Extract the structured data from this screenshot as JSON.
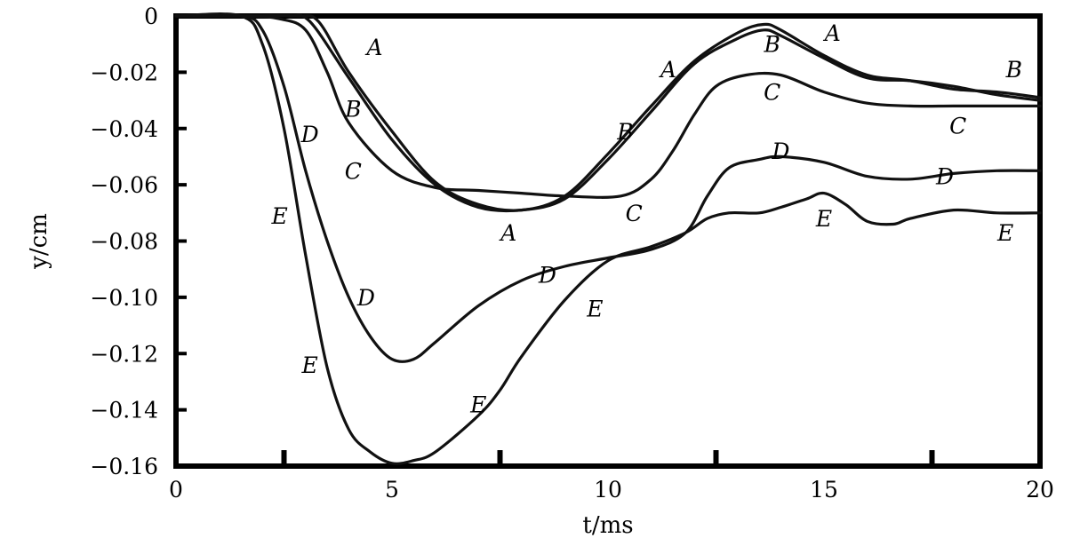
{
  "chart_data": {
    "type": "line",
    "xlabel": "t/ms",
    "ylabel": "y/cm",
    "xlim": [
      0,
      20
    ],
    "ylim": [
      -0.16,
      0
    ],
    "xticks": [
      0,
      5,
      10,
      15,
      20
    ],
    "xtick_labels": [
      "0",
      "5",
      "10",
      "15",
      "20"
    ],
    "xminor": [
      2.5,
      7.5,
      12.5,
      17.5
    ],
    "yticks": [
      0,
      -0.02,
      -0.04,
      -0.06,
      -0.08,
      -0.1,
      -0.12,
      -0.14,
      -0.16
    ],
    "ytick_labels": [
      "0",
      "−0.02",
      "−0.04",
      "−0.06",
      "−0.08",
      "−0.10",
      "−0.12",
      "−0.14",
      "−0.16"
    ],
    "series": [
      {
        "name": "A",
        "x": [
          0,
          1.8,
          2.8,
          3.3,
          4,
          5,
          6,
          7,
          8,
          9,
          10,
          11,
          12,
          13,
          13.6,
          14,
          15,
          16,
          17,
          18,
          19,
          20
        ],
        "y": [
          0,
          0,
          0,
          -0.002,
          -0.02,
          -0.041,
          -0.059,
          -0.067,
          -0.069,
          -0.064,
          -0.049,
          -0.032,
          -0.016,
          -0.006,
          -0.003,
          -0.005,
          -0.014,
          -0.021,
          -0.023,
          -0.026,
          -0.027,
          -0.029
        ]
      },
      {
        "name": "B",
        "x": [
          0,
          1.8,
          2.6,
          3.1,
          4,
          5,
          6,
          7,
          8,
          9,
          10,
          11,
          12,
          13,
          13.6,
          14,
          15,
          16,
          17,
          18,
          19,
          20
        ],
        "y": [
          0,
          0,
          0,
          -0.002,
          -0.022,
          -0.044,
          -0.06,
          -0.068,
          -0.069,
          -0.065,
          -0.051,
          -0.034,
          -0.017,
          -0.008,
          -0.005,
          -0.007,
          -0.015,
          -0.022,
          -0.023,
          -0.025,
          -0.028,
          -0.03
        ]
      },
      {
        "name": "C",
        "x": [
          0,
          1.6,
          2.4,
          3,
          3.5,
          4,
          5,
          6,
          7,
          8,
          9,
          10.3,
          11,
          11.5,
          12,
          12.5,
          13.2,
          14,
          15,
          16,
          17,
          18,
          19,
          20
        ],
        "y": [
          0,
          0,
          -0.001,
          -0.005,
          -0.02,
          -0.038,
          -0.055,
          -0.061,
          -0.062,
          -0.063,
          -0.064,
          -0.064,
          -0.058,
          -0.048,
          -0.035,
          -0.025,
          -0.021,
          -0.021,
          -0.027,
          -0.031,
          -0.032,
          -0.032,
          -0.032,
          -0.032
        ]
      },
      {
        "name": "D",
        "x": [
          0,
          1.5,
          2,
          2.5,
          3,
          3.5,
          4,
          4.5,
          5,
          5.5,
          6,
          7,
          8,
          9,
          10,
          11,
          11.8,
          12.3,
          12.8,
          13.5,
          14,
          15,
          16,
          17,
          18,
          19,
          20
        ],
        "y": [
          0,
          0,
          -0.005,
          -0.025,
          -0.055,
          -0.08,
          -0.1,
          -0.114,
          -0.122,
          -0.122,
          -0.116,
          -0.103,
          -0.094,
          -0.089,
          -0.086,
          -0.083,
          -0.077,
          -0.064,
          -0.054,
          -0.051,
          -0.05,
          -0.052,
          -0.057,
          -0.058,
          -0.056,
          -0.055,
          -0.055
        ]
      },
      {
        "name": "E",
        "x": [
          0,
          1.5,
          2,
          2.5,
          3,
          3.5,
          4,
          4.5,
          5,
          5.5,
          6,
          7,
          7.5,
          8,
          9,
          10,
          11,
          11.8,
          12.3,
          12.8,
          13.5,
          14,
          14.6,
          15,
          15.5,
          16,
          16.6,
          17,
          18,
          19,
          20
        ],
        "y": [
          0,
          0,
          -0.01,
          -0.04,
          -0.085,
          -0.125,
          -0.147,
          -0.155,
          -0.159,
          -0.158,
          -0.155,
          -0.142,
          -0.133,
          -0.121,
          -0.101,
          -0.087,
          -0.082,
          -0.077,
          -0.072,
          -0.07,
          -0.07,
          -0.068,
          -0.065,
          -0.063,
          -0.067,
          -0.073,
          -0.074,
          -0.072,
          -0.069,
          -0.07,
          -0.07
        ]
      }
    ],
    "annotations": [
      {
        "text": "A",
        "series": "A",
        "x": 4.6,
        "y": -0.011
      },
      {
        "text": "A",
        "series": "A",
        "x": 11.4,
        "y": -0.019
      },
      {
        "text": "A",
        "series": "A",
        "x": 15.2,
        "y": -0.006
      },
      {
        "text": "A",
        "series": "A",
        "x": 7.7,
        "y": -0.077
      },
      {
        "text": "B",
        "series": "B",
        "x": 4.1,
        "y": -0.033
      },
      {
        "text": "B",
        "series": "B",
        "x": 10.4,
        "y": -0.041
      },
      {
        "text": "B",
        "series": "B",
        "x": 13.8,
        "y": -0.01
      },
      {
        "text": "B",
        "series": "B",
        "x": 19.4,
        "y": -0.019
      },
      {
        "text": "C",
        "series": "C",
        "x": 4.1,
        "y": -0.055
      },
      {
        "text": "C",
        "series": "C",
        "x": 10.6,
        "y": -0.07
      },
      {
        "text": "C",
        "series": "C",
        "x": 13.8,
        "y": -0.027
      },
      {
        "text": "C",
        "series": "C",
        "x": 18.1,
        "y": -0.039
      },
      {
        "text": "D",
        "series": "D",
        "x": 3.1,
        "y": -0.042
      },
      {
        "text": "D",
        "series": "D",
        "x": 4.4,
        "y": -0.1
      },
      {
        "text": "D",
        "series": "D",
        "x": 8.6,
        "y": -0.092
      },
      {
        "text": "D",
        "series": "D",
        "x": 14.0,
        "y": -0.048
      },
      {
        "text": "D",
        "series": "D",
        "x": 17.8,
        "y": -0.057
      },
      {
        "text": "E",
        "series": "E",
        "x": 2.4,
        "y": -0.071
      },
      {
        "text": "E",
        "series": "E",
        "x": 3.1,
        "y": -0.124
      },
      {
        "text": "E",
        "series": "E",
        "x": 7.0,
        "y": -0.138
      },
      {
        "text": "E",
        "series": "E",
        "x": 9.7,
        "y": -0.104
      },
      {
        "text": "E",
        "series": "E",
        "x": 15.0,
        "y": -0.072
      },
      {
        "text": "E",
        "series": "E",
        "x": 19.2,
        "y": -0.077
      }
    ]
  }
}
